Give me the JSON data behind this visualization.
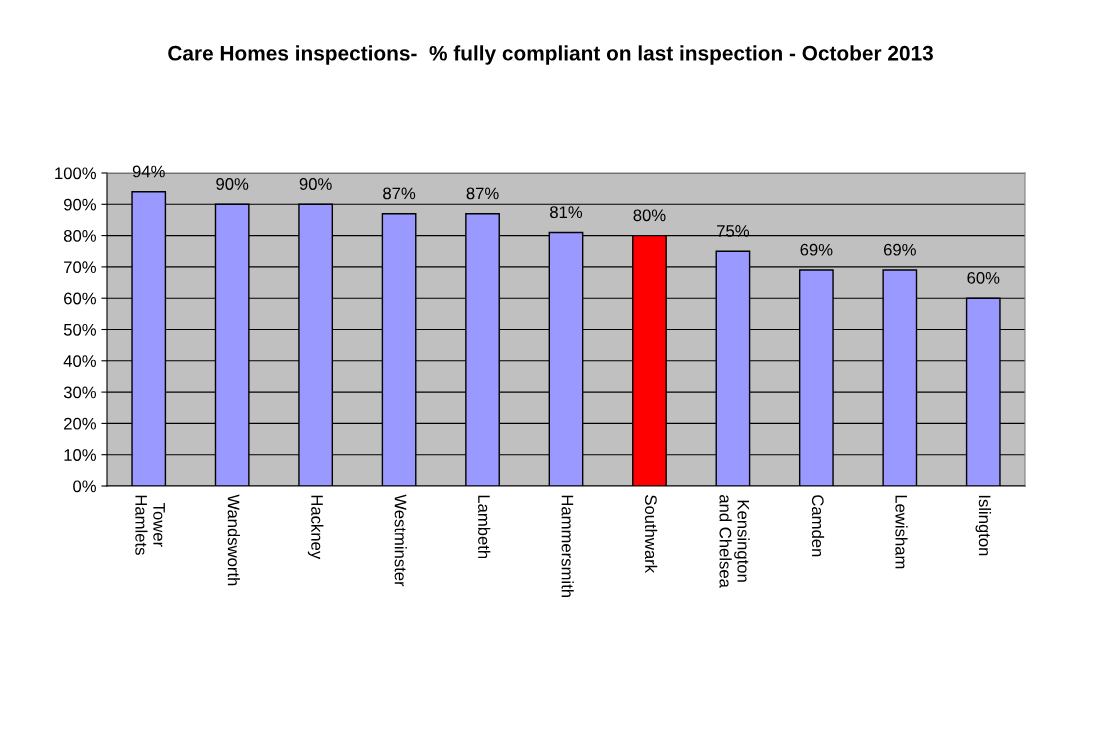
{
  "chart_data": {
    "type": "bar",
    "title": "Care Homes inspections-  % fully compliant on last inspection - October 2013",
    "categories": [
      "Tower\nHamlets",
      "Wandsworth",
      "Hackney",
      "Westminster",
      "Lambeth",
      "Hammersmith",
      "Southwark",
      "Kensington\nand Chelsea",
      "Camden",
      "Lewisham",
      "Islington"
    ],
    "values": [
      94,
      90,
      90,
      87,
      87,
      81,
      80,
      75,
      69,
      69,
      60
    ],
    "colors": [
      "#9999ff",
      "#9999ff",
      "#9999ff",
      "#9999ff",
      "#9999ff",
      "#9999ff",
      "#ff0000",
      "#9999ff",
      "#9999ff",
      "#9999ff",
      "#9999ff"
    ],
    "value_labels": [
      "94%",
      "90%",
      "90%",
      "87%",
      "87%",
      "81%",
      "80%",
      "75%",
      "69%",
      "69%",
      "60%"
    ],
    "ylim": [
      0,
      100
    ],
    "yticks": [
      {
        "value": 0,
        "label": "0%"
      },
      {
        "value": 10,
        "label": "10%"
      },
      {
        "value": 20,
        "label": "20%"
      },
      {
        "value": 30,
        "label": "30%"
      },
      {
        "value": 40,
        "label": "40%"
      },
      {
        "value": 50,
        "label": "50%"
      },
      {
        "value": 60,
        "label": "60%"
      },
      {
        "value": 70,
        "label": "70%"
      },
      {
        "value": 80,
        "label": "80%"
      },
      {
        "value": 90,
        "label": "90%"
      },
      {
        "value": 100,
        "label": "100%"
      }
    ],
    "grid": "y"
  }
}
